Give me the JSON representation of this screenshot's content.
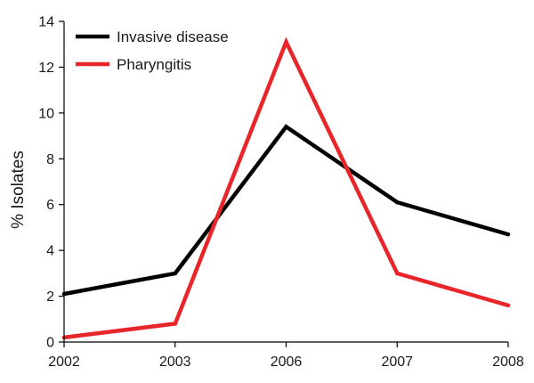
{
  "chart_data": {
    "type": "line",
    "categories": [
      "2002",
      "2003",
      "2006",
      "2007",
      "2008"
    ],
    "series": [
      {
        "name": "Invasive disease",
        "values": [
          2.1,
          3.0,
          9.4,
          6.1,
          4.7
        ],
        "color": "#000000"
      },
      {
        "name": "Pharyngitis",
        "values": [
          0.2,
          0.8,
          13.1,
          3.0,
          1.6
        ],
        "color": "#e8262a"
      }
    ],
    "title": "",
    "xlabel": "",
    "ylabel": "% Isolates",
    "ylim": [
      0,
      14
    ],
    "yticks": [
      "0",
      "2",
      "4",
      "6",
      "8",
      "10",
      "12",
      "14"
    ],
    "grid": false,
    "legend_position": "top-left"
  }
}
